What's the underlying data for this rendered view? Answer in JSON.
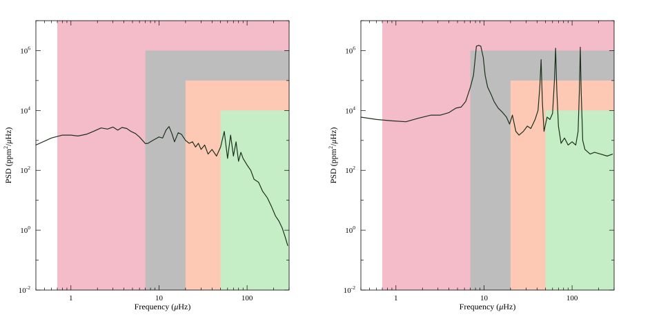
{
  "chart_data": [
    {
      "type": "line",
      "scale": "log-log",
      "xlabel_pre": "Frequency  (",
      "xlabel_mu": "μ",
      "xlabel_post": "Hz)",
      "ylabel_pre": "PSD  (ppm",
      "ylabel_sup": "2",
      "ylabel_mid": "/",
      "ylabel_mu": "μ",
      "ylabel_post": "Hz)",
      "xlim": [
        0.4,
        300
      ],
      "ylim": [
        0.01,
        10000000
      ],
      "x_ticks": [
        {
          "value": 1,
          "label": "1"
        },
        {
          "value": 10,
          "label": "10"
        },
        {
          "value": 100,
          "label": "100"
        }
      ],
      "y_ticks": [
        {
          "value": 0.01,
          "base": "10",
          "exp": "-2"
        },
        {
          "value": 1,
          "base": "10",
          "exp": "0"
        },
        {
          "value": 100,
          "base": "10",
          "exp": "2"
        },
        {
          "value": 10000,
          "base": "10",
          "exp": "4"
        },
        {
          "value": 1000000,
          "base": "10",
          "exp": "6"
        }
      ],
      "regions": [
        {
          "name": "pink",
          "color": "#f4bcc8",
          "x_from": 0.7,
          "x_to": 300,
          "y_top": 10000000
        },
        {
          "name": "gray",
          "color": "#bdbdbd",
          "x_from": 7,
          "x_to": 300,
          "y_top": 1000000
        },
        {
          "name": "salmon",
          "color": "#fdc8b4",
          "x_from": 20,
          "x_to": 300,
          "y_top": 100000
        },
        {
          "name": "green",
          "color": "#c6eec6",
          "x_from": 50,
          "x_to": 300,
          "y_top": 10000
        }
      ],
      "series": [
        {
          "name": "PSD",
          "color": "#1a2e1a",
          "x": [
            0.4,
            0.6,
            0.8,
            1.0,
            1.2,
            1.5,
            1.8,
            2.2,
            2.6,
            3.0,
            3.4,
            3.8,
            4.3,
            4.8,
            5.4,
            6.0,
            6.5,
            7.0,
            7.5,
            8.0,
            9.0,
            10.0,
            11.0,
            12.0,
            13.0,
            14.0,
            15.0,
            16.5,
            18.0,
            20.0,
            22.0,
            24.0,
            26.0,
            28.0,
            30.0,
            33.0,
            36.0,
            40.0,
            45.0,
            50.0,
            55.0,
            60.0,
            65.0,
            70.0,
            75.0,
            80.0,
            85.0,
            90.0,
            100.0,
            110.0,
            120.0,
            135.0,
            150.0,
            170.0,
            190.0,
            210.0,
            230.0,
            250.0,
            270.0,
            290.0
          ],
          "y": [
            700,
            1200,
            1500,
            1500,
            1400,
            1600,
            2000,
            2600,
            2400,
            2800,
            2200,
            2700,
            2500,
            2000,
            1700,
            1300,
            1000,
            780,
            800,
            900,
            1100,
            1300,
            1200,
            2200,
            2900,
            1700,
            900,
            1800,
            1600,
            1000,
            800,
            900,
            600,
            800,
            500,
            700,
            350,
            500,
            300,
            600,
            2000,
            250,
            1500,
            300,
            900,
            200,
            400,
            250,
            150,
            100,
            50,
            40,
            20,
            12,
            6,
            3,
            2,
            1.2,
            0.6,
            0.3
          ]
        }
      ]
    },
    {
      "type": "line",
      "scale": "log-log",
      "xlabel_pre": "Frequency  (",
      "xlabel_mu": "μ",
      "xlabel_post": "Hz)",
      "ylabel_pre": "PSD  (ppm",
      "ylabel_sup": "2",
      "ylabel_mid": "/",
      "ylabel_mu": "μ",
      "ylabel_post": "Hz)",
      "xlim": [
        0.4,
        300
      ],
      "ylim": [
        0.01,
        10000000
      ],
      "x_ticks": [
        {
          "value": 1,
          "label": "1"
        },
        {
          "value": 10,
          "label": "10"
        },
        {
          "value": 100,
          "label": "100"
        }
      ],
      "y_ticks": [
        {
          "value": 0.01,
          "base": "10",
          "exp": "-2"
        },
        {
          "value": 1,
          "base": "10",
          "exp": "0"
        },
        {
          "value": 100,
          "base": "10",
          "exp": "2"
        },
        {
          "value": 10000,
          "base": "10",
          "exp": "4"
        },
        {
          "value": 1000000,
          "base": "10",
          "exp": "6"
        }
      ],
      "regions": [
        {
          "name": "pink",
          "color": "#f4bcc8",
          "x_from": 0.7,
          "x_to": 300,
          "y_top": 10000000
        },
        {
          "name": "gray",
          "color": "#bdbdbd",
          "x_from": 7,
          "x_to": 300,
          "y_top": 1000000
        },
        {
          "name": "salmon",
          "color": "#fdc8b4",
          "x_from": 20,
          "x_to": 300,
          "y_top": 100000
        },
        {
          "name": "green",
          "color": "#c6eec6",
          "x_from": 50,
          "x_to": 300,
          "y_top": 10000
        }
      ],
      "series": [
        {
          "name": "PSD",
          "color": "#1a2e1a",
          "x": [
            0.4,
            0.6,
            0.9,
            1.3,
            1.8,
            2.5,
            3.2,
            4.0,
            4.8,
            5.5,
            6.2,
            7.0,
            7.6,
            8.2,
            8.7,
            9.2,
            9.8,
            10.3,
            11.0,
            12.0,
            13.0,
            14.5,
            16.0,
            18.0,
            19.5,
            21.0,
            23.0,
            25.0,
            28.0,
            31.0,
            34.0,
            38.0,
            41.0,
            43.0,
            44.5,
            46.0,
            48.0,
            52.0,
            56.0,
            60.0,
            63.0,
            65.0,
            67.0,
            70.0,
            75.0,
            82.0,
            90.0,
            100.0,
            110.0,
            117.0,
            121.0,
            124.0,
            127.0,
            132.0,
            140.0,
            160.0,
            180.0,
            210.0,
            250.0,
            290.0
          ],
          "y": [
            6000,
            5000,
            4500,
            4200,
            5500,
            7000,
            7000,
            8500,
            12000,
            13000,
            20000,
            60000,
            150000,
            1400000,
            1500000,
            1400000,
            600000,
            150000,
            60000,
            35000,
            20000,
            12000,
            9000,
            6000,
            3500,
            7000,
            2000,
            1500,
            2000,
            3000,
            2500,
            5000,
            10000,
            60000,
            500000,
            20000,
            2000,
            6000,
            5000,
            8000,
            100000,
            1200000,
            50000,
            3000,
            800,
            1200,
            700,
            900,
            700,
            2000,
            50000,
            1300000,
            40000,
            1000,
            500,
            350,
            400,
            350,
            300,
            350
          ]
        }
      ]
    }
  ]
}
